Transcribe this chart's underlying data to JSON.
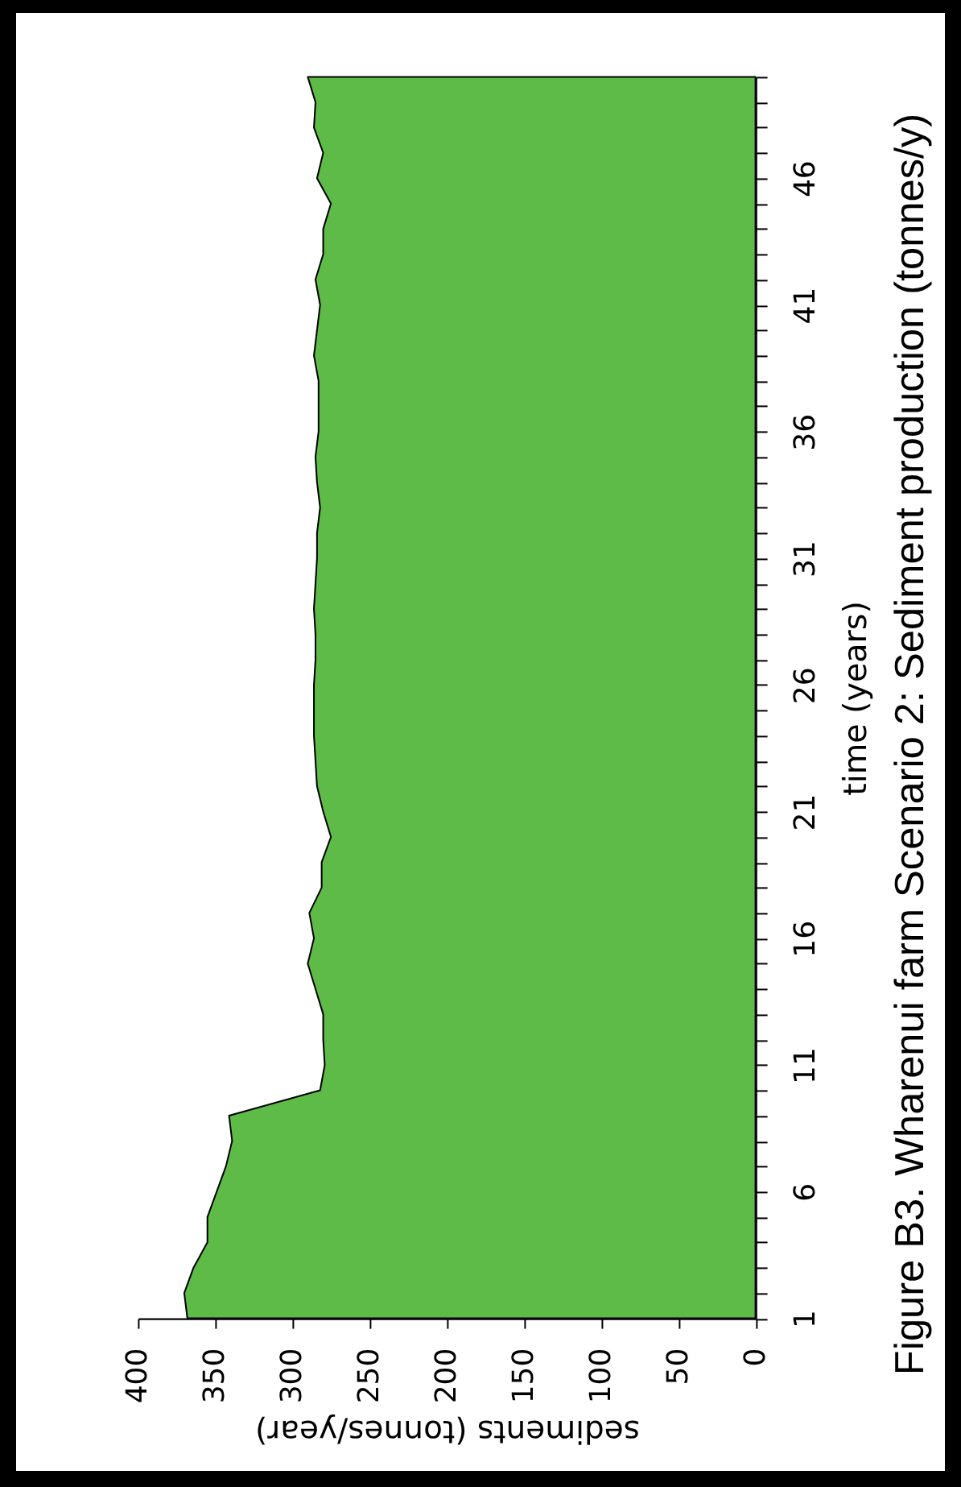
{
  "chart_data": {
    "type": "area",
    "orientation": "horizontal",
    "title": "Figure B3. Wharenui farm Scenario 2: Sediment production (tonnes/y)",
    "xlabel": "sediments (tonnes/year)",
    "ylabel": "time (years)",
    "x": [
      1,
      2,
      3,
      4,
      5,
      6,
      7,
      8,
      9,
      10,
      11,
      12,
      13,
      14,
      15,
      16,
      17,
      18,
      19,
      20,
      21,
      22,
      23,
      24,
      25,
      26,
      27,
      28,
      29,
      30,
      31,
      32,
      33,
      34,
      35,
      36,
      37,
      38,
      39,
      40,
      41,
      42,
      43,
      44,
      45,
      46,
      47,
      48,
      49,
      50
    ],
    "series": [
      {
        "color": "#5fbb47",
        "values": [
          368,
          370,
          364,
          355,
          355,
          349,
          343,
          339,
          341,
          282,
          279,
          280,
          280,
          285,
          290,
          286,
          289,
          281,
          281,
          275,
          280,
          284,
          285,
          286,
          286,
          286,
          285,
          285,
          286,
          285,
          284,
          284,
          282,
          284,
          285,
          283,
          283,
          283,
          286,
          284,
          282,
          285,
          280,
          280,
          275,
          284,
          280,
          286,
          285,
          290
        ]
      }
    ],
    "xlim": [
      400,
      0
    ],
    "xticks": [
      400,
      350,
      300,
      250,
      200,
      150,
      100,
      50,
      0
    ],
    "ylim": [
      1,
      50
    ],
    "yticks": [
      1,
      {
        "value": 2,
        "label": null
      },
      {
        "value": 3,
        "label": null
      },
      {
        "value": 4,
        "label": null
      },
      {
        "value": 5,
        "label": null
      },
      6,
      {
        "value": 7,
        "label": null
      },
      {
        "value": 8,
        "label": null
      },
      {
        "value": 9,
        "label": null
      },
      {
        "value": 10,
        "label": null
      },
      11,
      {
        "value": 12,
        "label": null
      },
      {
        "value": 13,
        "label": null
      },
      {
        "value": 14,
        "label": null
      },
      {
        "value": 15,
        "label": null
      },
      16,
      {
        "value": 17,
        "label": null
      },
      {
        "value": 18,
        "label": null
      },
      {
        "value": 19,
        "label": null
      },
      {
        "value": 20,
        "label": null
      },
      21,
      {
        "value": 22,
        "label": null
      },
      {
        "value": 23,
        "label": null
      },
      {
        "value": 24,
        "label": null
      },
      {
        "value": 25,
        "label": null
      },
      26,
      {
        "value": 27,
        "label": null
      },
      {
        "value": 28,
        "label": null
      },
      {
        "value": 29,
        "label": null
      },
      {
        "value": 30,
        "label": null
      },
      31,
      {
        "value": 32,
        "label": null
      },
      {
        "value": 33,
        "label": null
      },
      {
        "value": 34,
        "label": null
      },
      {
        "value": 35,
        "label": null
      },
      36,
      {
        "value": 37,
        "label": null
      },
      {
        "value": 38,
        "label": null
      },
      {
        "value": 39,
        "label": null
      },
      {
        "value": 40,
        "label": null
      },
      41,
      {
        "value": 42,
        "label": null
      },
      {
        "value": 43,
        "label": null
      },
      {
        "value": 44,
        "label": null
      },
      {
        "value": 45,
        "label": null
      },
      46,
      {
        "value": 47,
        "label": null
      },
      {
        "value": 48,
        "label": null
      },
      {
        "value": 49,
        "label": null
      },
      {
        "value": 50,
        "label": null
      }
    ],
    "grid": false
  }
}
